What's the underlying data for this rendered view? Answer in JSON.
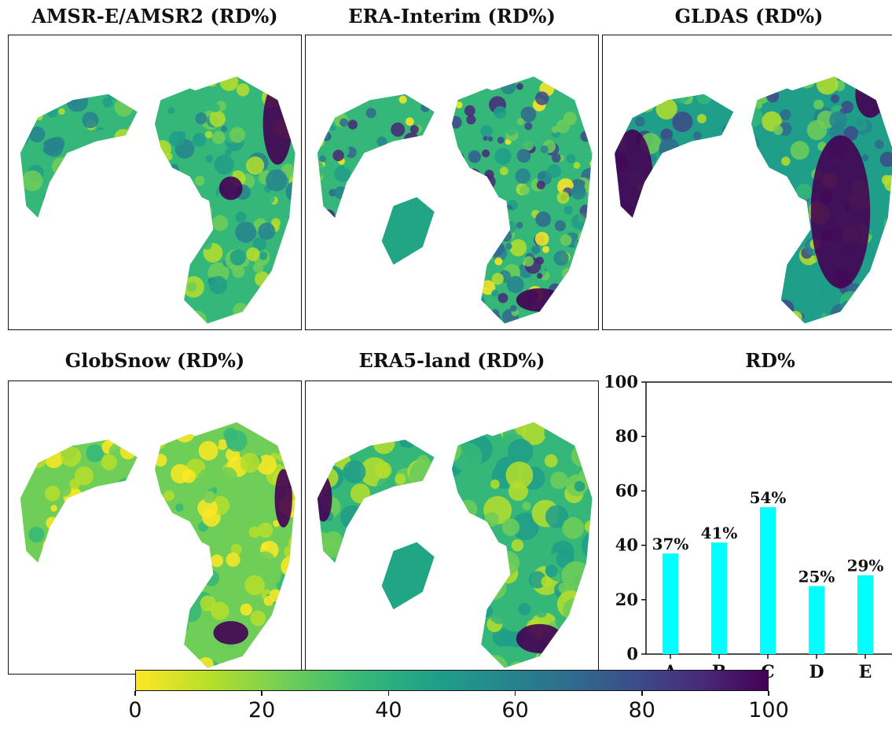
{
  "panels": [
    {
      "title": "AMSR-E/AMSR2 (RD%)"
    },
    {
      "title": "ERA-Interim (RD%)"
    },
    {
      "title": "GLDAS (RD%)"
    },
    {
      "title": "GlobSnow (RD%)"
    },
    {
      "title": "ERA5-land (RD%)"
    }
  ],
  "colorbar": {
    "ticks": [
      "0",
      "20",
      "40",
      "60",
      "80",
      "100"
    ],
    "colormap": "viridis_r",
    "range": [
      0,
      100
    ]
  },
  "chart_data": {
    "type": "bar",
    "title": "RD%",
    "categories": [
      "A",
      "B",
      "C",
      "D",
      "E"
    ],
    "values": [
      37,
      41,
      54,
      25,
      29
    ],
    "data_labels": [
      "37%",
      "41%",
      "54%",
      "25%",
      "29%"
    ],
    "ylim": [
      0,
      100
    ],
    "yticks": [
      "0",
      "20",
      "40",
      "60",
      "80",
      "100"
    ],
    "bar_color": "#00ffff",
    "grid": false
  },
  "colors": {
    "viridis": [
      "#fde725",
      "#b5de2b",
      "#6ece58",
      "#35b779",
      "#1f9e89",
      "#26828e",
      "#31688e",
      "#3e4989",
      "#482878",
      "#440154"
    ]
  }
}
